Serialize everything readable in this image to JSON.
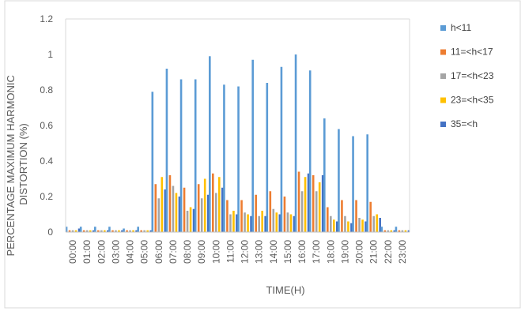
{
  "chart_data": {
    "type": "bar",
    "title": "",
    "xlabel": "TIME(H)",
    "ylabel": "PERCENTAGE MAXIMUM HARMONIC DISTORTION (%)",
    "ylim": [
      0,
      1.2
    ],
    "yticks": [
      "0",
      "0.2",
      "0.4",
      "0.6",
      "0.8",
      "1",
      "1.2"
    ],
    "ytick_values": [
      0,
      0.2,
      0.4,
      0.6,
      0.8,
      1.0,
      1.2
    ],
    "grid": false,
    "legend_position": "right",
    "categories": [
      "00:00",
      "01:00",
      "02:00",
      "03:00",
      "04:00",
      "05:00",
      "06:00",
      "07:00",
      "08:00",
      "09:00",
      "10:00",
      "11:00",
      "12:00",
      "13:00",
      "14:00",
      "15:00",
      "16:00",
      "17:00",
      "18:00",
      "19:00",
      "20:00",
      "21:00",
      "22:00",
      "23:00"
    ],
    "series": [
      {
        "name": "h<11",
        "color": "#5B9BD5",
        "values": [
          0.03,
          0.03,
          0.03,
          0.03,
          0.02,
          0.03,
          0.79,
          0.92,
          0.86,
          0.86,
          0.99,
          0.83,
          0.82,
          0.97,
          0.84,
          0.93,
          1.0,
          0.91,
          0.64,
          0.58,
          0.54,
          0.55,
          0.03,
          0.03
        ]
      },
      {
        "name": "11=<h<17",
        "color": "#ED7D31",
        "values": [
          0.01,
          0.01,
          0.01,
          0.01,
          0.01,
          0.01,
          0.27,
          0.32,
          0.25,
          0.27,
          0.33,
          0.18,
          0.18,
          0.21,
          0.23,
          0.2,
          0.34,
          0.32,
          0.14,
          0.18,
          0.18,
          0.17,
          0.01,
          0.01
        ]
      },
      {
        "name": "17=<h<23",
        "color": "#A5A5A5",
        "values": [
          0.01,
          0.01,
          0.01,
          0.01,
          0.01,
          0.01,
          0.19,
          0.26,
          0.12,
          0.19,
          0.22,
          0.1,
          0.11,
          0.09,
          0.13,
          0.11,
          0.23,
          0.23,
          0.09,
          0.09,
          0.08,
          0.09,
          0.01,
          0.01
        ]
      },
      {
        "name": "23=<h<35",
        "color": "#FFC000",
        "values": [
          0.01,
          0.01,
          0.01,
          0.01,
          0.01,
          0.01,
          0.31,
          0.22,
          0.14,
          0.3,
          0.31,
          0.12,
          0.1,
          0.12,
          0.11,
          0.1,
          0.31,
          0.28,
          0.07,
          0.06,
          0.07,
          0.1,
          0.01,
          0.01
        ]
      },
      {
        "name": "35=<h",
        "color": "#4472C4",
        "values": [
          0.02,
          0.01,
          0.01,
          0.01,
          0.01,
          0.01,
          0.24,
          0.2,
          0.13,
          0.21,
          0.25,
          0.1,
          0.09,
          0.09,
          0.1,
          0.09,
          0.33,
          0.32,
          0.06,
          0.05,
          0.06,
          0.08,
          0.01,
          0.01
        ]
      }
    ]
  }
}
